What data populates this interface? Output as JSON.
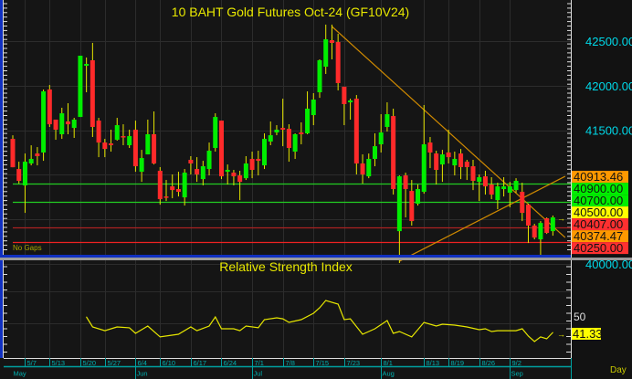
{
  "title": "10  BAHT  Gold  Futures  Oct-24  (GF10V24)",
  "no_gaps_label": "No  Gaps",
  "period_label": "Day",
  "colors": {
    "background": "#151515",
    "up": "#00ee00",
    "down": "#ff2a2a",
    "wick": "#e6e600",
    "title": "#e8e800",
    "axis_text": "#00d8e8",
    "grid": "#2c2c2c",
    "trendline": "#d08a00",
    "rsi_line": "#e6e600"
  },
  "chart_data": [
    {
      "type": "candlestick",
      "title": "10  BAHT  Gold  Futures  Oct-24  (GF10V24)",
      "ylim": [
        39900,
        42750
      ],
      "yticks": [
        "42500.00",
        "42000.00",
        "41500.00",
        "40000.00"
      ],
      "ytick_values": [
        42500,
        42000,
        41500,
        40000
      ],
      "grid": true,
      "x_tick_labels": [
        {
          "bar": 2,
          "label": "5/7"
        },
        {
          "bar": 6,
          "label": "5/13"
        },
        {
          "bar": 11,
          "label": "5/20"
        },
        {
          "bar": 15,
          "label": "5/27"
        },
        {
          "bar": 20,
          "label": "6/4"
        },
        {
          "bar": 24,
          "label": "6/10"
        },
        {
          "bar": 29,
          "label": "6/17"
        },
        {
          "bar": 34,
          "label": "6/24"
        },
        {
          "bar": 39,
          "label": "7/1"
        },
        {
          "bar": 44,
          "label": "7/8"
        },
        {
          "bar": 49,
          "label": "7/15"
        },
        {
          "bar": 54,
          "label": "7/23"
        },
        {
          "bar": 60,
          "label": "8/1"
        },
        {
          "bar": 67,
          "label": "8/13"
        },
        {
          "bar": 71,
          "label": "8/19"
        },
        {
          "bar": 76,
          "label": "8/26"
        },
        {
          "bar": 81,
          "label": "9/2"
        }
      ],
      "month_labels": [
        {
          "bar": 0,
          "label": "May"
        },
        {
          "bar": 20,
          "label": "Jun"
        },
        {
          "bar": 39,
          "label": "Jul"
        },
        {
          "bar": 60,
          "label": "Aug"
        },
        {
          "bar": 81,
          "label": "Sep"
        }
      ],
      "ohlc": [
        [
          41403,
          41444,
          41085,
          41085
        ],
        [
          41065,
          41147,
          40901,
          40932
        ],
        [
          40881,
          41239,
          40573,
          41147
        ],
        [
          41127,
          41331,
          41106,
          41178
        ],
        [
          41239,
          41311,
          41106,
          41209
        ],
        [
          41250,
          41957,
          41157,
          41936
        ],
        [
          41957,
          42008,
          41537,
          41567
        ],
        [
          41619,
          41619,
          41393,
          41506
        ],
        [
          41455,
          41752,
          41403,
          41690
        ],
        [
          41598,
          41803,
          41455,
          41567
        ],
        [
          41526,
          41639,
          41414,
          41619
        ],
        [
          41649,
          42336,
          41649,
          42336
        ],
        [
          42223,
          42316,
          41926,
          42244
        ],
        [
          42285,
          42480,
          41424,
          41537
        ],
        [
          41608,
          41639,
          41198,
          41362
        ],
        [
          41362,
          41403,
          41198,
          41290
        ],
        [
          41352,
          41506,
          41260,
          41332
        ],
        [
          41393,
          41639,
          41383,
          41557
        ],
        [
          41434,
          41567,
          41332,
          41424
        ],
        [
          41332,
          41506,
          41301,
          41434
        ],
        [
          41506,
          41608,
          41034,
          41096
        ],
        [
          41034,
          41280,
          40921,
          41188
        ],
        [
          41229,
          41619,
          41229,
          41455
        ],
        [
          41455,
          41711,
          41116,
          41127
        ],
        [
          41045,
          41086,
          40665,
          40727
        ],
        [
          40757,
          40942,
          40706,
          40747
        ],
        [
          40870,
          41004,
          40737,
          40829
        ],
        [
          40840,
          41034,
          40757,
          40809
        ],
        [
          40747,
          41065,
          40655,
          41024
        ],
        [
          41168,
          41209,
          41004,
          41127
        ],
        [
          41065,
          41198,
          40921,
          41004
        ],
        [
          40952,
          41157,
          40881,
          41096
        ],
        [
          41065,
          41362,
          40993,
          41270
        ],
        [
          41301,
          41690,
          41260,
          41649
        ],
        [
          41608,
          41608,
          40952,
          40983
        ],
        [
          41034,
          41116,
          40891,
          41055
        ],
        [
          41024,
          41055,
          40881,
          40983
        ],
        [
          40993,
          41045,
          40716,
          40921
        ],
        [
          40962,
          41209,
          40942,
          41127
        ],
        [
          41178,
          41260,
          40962,
          41055
        ],
        [
          41178,
          41270,
          40993,
          41157
        ],
        [
          41106,
          41465,
          41065,
          41403
        ],
        [
          41373,
          41598,
          41332,
          41444
        ],
        [
          41475,
          41557,
          41444,
          41506
        ],
        [
          41526,
          41854,
          41321,
          41506
        ],
        [
          41516,
          41567,
          41147,
          41301
        ],
        [
          41260,
          41465,
          41178,
          41455
        ],
        [
          41475,
          41588,
          41342,
          41455
        ],
        [
          41465,
          41936,
          41455,
          41742
        ],
        [
          41670,
          41916,
          41557,
          41844
        ],
        [
          41926,
          42295,
          41864,
          42285
        ],
        [
          42213,
          42685,
          42131,
          42520
        ],
        [
          42510,
          42685,
          42295,
          42480
        ],
        [
          42490,
          42582,
          41947,
          42029
        ],
        [
          41988,
          41988,
          41557,
          41793
        ],
        [
          41813,
          41854,
          41619,
          41834
        ],
        [
          41854,
          41895,
          41004,
          41127
        ],
        [
          41127,
          41229,
          40901,
          41004
        ],
        [
          40983,
          41239,
          40962,
          41178
        ],
        [
          41178,
          41465,
          41096,
          41321
        ],
        [
          41342,
          41680,
          41250,
          41475
        ],
        [
          41537,
          41813,
          41485,
          41680
        ],
        [
          41659,
          41742,
          40778,
          40840
        ],
        [
          40368,
          40993,
          40010,
          40983
        ],
        [
          40993,
          41024,
          40522,
          40840
        ],
        [
          40819,
          40942,
          40430,
          40481
        ],
        [
          40676,
          40891,
          40655,
          40840
        ],
        [
          40809,
          41783,
          40788,
          41342
        ],
        [
          41362,
          41424,
          41075,
          41250
        ],
        [
          41239,
          41270,
          40891,
          41055
        ],
        [
          41116,
          41280,
          40921,
          41229
        ],
        [
          41250,
          41506,
          41127,
          41198
        ],
        [
          41106,
          41260,
          40993,
          41178
        ],
        [
          41239,
          41290,
          40952,
          41086
        ],
        [
          41147,
          41168,
          40942,
          41086
        ],
        [
          41096,
          41168,
          40829,
          40932
        ],
        [
          40921,
          41004,
          40706,
          40973
        ],
        [
          40983,
          41045,
          40778,
          40870
        ],
        [
          40891,
          40973,
          40727,
          40778
        ],
        [
          40716,
          40911,
          40614,
          40870
        ],
        [
          40840,
          40973,
          40757,
          40870
        ],
        [
          40799,
          40921,
          40635,
          40870
        ],
        [
          40829,
          40962,
          40799,
          40932
        ],
        [
          40809,
          40911,
          40481,
          40573
        ],
        [
          40665,
          40676,
          40235,
          40430
        ],
        [
          40430,
          40450,
          40276,
          40296
        ],
        [
          40276,
          40481,
          40061,
          40460
        ],
        [
          40512,
          40522,
          40337,
          40348
        ],
        [
          40368,
          40543,
          40317,
          40522
        ]
      ],
      "horizontal_levels": [
        {
          "value": 40900,
          "color": "#22cc22"
        },
        {
          "value": 40700,
          "color": "#22cc22"
        },
        {
          "value": 40407,
          "color": "#aa2222"
        },
        {
          "value": 40250,
          "color": "#ee2222"
        }
      ],
      "trendlines": [
        {
          "from": {
            "bar": 52,
            "price": 42664
          },
          "to": {
            "bar": 90,
            "price": 40296
          }
        },
        {
          "from": {
            "bar": 63,
            "price": 40030
          },
          "to": {
            "bar": 90,
            "price": 40983
          }
        }
      ],
      "price_labels": [
        {
          "text": "40913.46",
          "value": 40913.46,
          "bg": "#ff9900"
        },
        {
          "text": "40900.00",
          "value": 40900,
          "bg": "#00ee00"
        },
        {
          "text": "40700.00",
          "value": 40700,
          "bg": "#00ee00"
        },
        {
          "text": "40500.00",
          "value": 40500,
          "bg": "#ffff00"
        },
        {
          "text": "40407.00",
          "value": 40407,
          "bg": "#ff3030"
        },
        {
          "text": "40374.47",
          "value": 40374.47,
          "bg": "#ff9900"
        },
        {
          "text": "40250.00",
          "value": 40250,
          "bg": "#ff3030"
        }
      ]
    },
    {
      "type": "line",
      "title": "Relative  Strength  Index",
      "ytick_label": "50",
      "ytick_value": 50,
      "last_value_label": "41.33",
      "last_value": 41.33,
      "points": [
        [
          12,
          56.1
        ],
        [
          13,
          46.5
        ],
        [
          15,
          43.0
        ],
        [
          17,
          46.5
        ],
        [
          19,
          45.7
        ],
        [
          20,
          40.4
        ],
        [
          22,
          47.4
        ],
        [
          24,
          37.0
        ],
        [
          27,
          39.6
        ],
        [
          29,
          46.5
        ],
        [
          30,
          43.0
        ],
        [
          32,
          47.4
        ],
        [
          33,
          56.1
        ],
        [
          34,
          44.8
        ],
        [
          36,
          44.8
        ],
        [
          37,
          43.0
        ],
        [
          38,
          47.4
        ],
        [
          40,
          45.7
        ],
        [
          41,
          53.5
        ],
        [
          43,
          55.2
        ],
        [
          44,
          54.3
        ],
        [
          45,
          50.9
        ],
        [
          47,
          53.5
        ],
        [
          49,
          59.6
        ],
        [
          50,
          64.8
        ],
        [
          51,
          71.7
        ],
        [
          53,
          68.3
        ],
        [
          54,
          53.5
        ],
        [
          55,
          54.3
        ],
        [
          57,
          39.6
        ],
        [
          59,
          44.8
        ],
        [
          61,
          52.6
        ],
        [
          62,
          40.4
        ],
        [
          63,
          42.2
        ],
        [
          65,
          37.0
        ],
        [
          67,
          50.9
        ],
        [
          69,
          47.4
        ],
        [
          70,
          49.1
        ],
        [
          72,
          48.3
        ],
        [
          74,
          46.5
        ],
        [
          76,
          43.9
        ],
        [
          77,
          44.8
        ],
        [
          78,
          42.2
        ],
        [
          79,
          43.0
        ],
        [
          82,
          43.0
        ],
        [
          83,
          44.8
        ],
        [
          84,
          37.8
        ],
        [
          85,
          32.6
        ],
        [
          86,
          37.0
        ],
        [
          87,
          35.2
        ],
        [
          88,
          41.33
        ]
      ]
    }
  ]
}
